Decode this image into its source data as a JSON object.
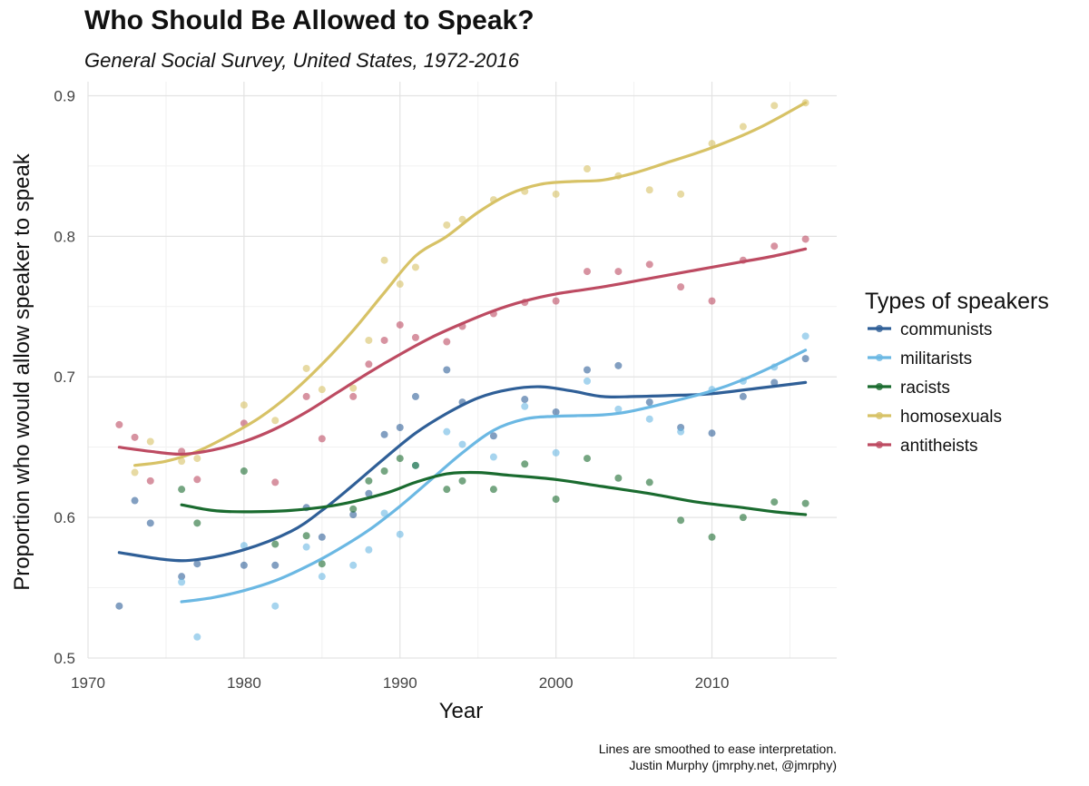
{
  "title": "Who Should Be Allowed to Speak?",
  "subtitle": "General Social Survey, United States, 1972-2016",
  "caption": [
    "Lines are smoothed to ease interpretation.",
    "Justin Murphy (jmrphy.net, @jmrphy)"
  ],
  "chart_data": {
    "type": "scatter",
    "title": "Who Should Be Allowed to Speak?",
    "subtitle": "General Social Survey, United States, 1972-2016",
    "xlabel": "Year",
    "ylabel": "Proportion who would allow speaker to speak",
    "xlim": [
      1970,
      2018
    ],
    "ylim": [
      0.5,
      0.91
    ],
    "x_ticks": [
      1970,
      1980,
      1990,
      2000,
      2010
    ],
    "y_ticks": [
      0.5,
      0.6,
      0.7,
      0.8,
      0.9
    ],
    "x_tick_labels": [
      "1970",
      "1980",
      "1990",
      "2000",
      "2010"
    ],
    "y_tick_labels": [
      "0.5",
      "0.6",
      "0.7",
      "0.8",
      "0.9"
    ],
    "grid": true,
    "legend": {
      "title": "Types of speakers",
      "position": "right"
    },
    "series": [
      {
        "name": "communists",
        "color": "#2f5f97",
        "points": [
          [
            1972,
            0.537
          ],
          [
            1973,
            0.612
          ],
          [
            1974,
            0.596
          ],
          [
            1976,
            0.558
          ],
          [
            1977,
            0.567
          ],
          [
            1980,
            0.566
          ],
          [
            1982,
            0.566
          ],
          [
            1984,
            0.607
          ],
          [
            1985,
            0.586
          ],
          [
            1987,
            0.602
          ],
          [
            1988,
            0.617
          ],
          [
            1989,
            0.659
          ],
          [
            1990,
            0.664
          ],
          [
            1991,
            0.686
          ],
          [
            1993,
            0.705
          ],
          [
            1994,
            0.682
          ],
          [
            1996,
            0.658
          ],
          [
            1998,
            0.684
          ],
          [
            2000,
            0.675
          ],
          [
            2002,
            0.705
          ],
          [
            2004,
            0.708
          ],
          [
            2006,
            0.682
          ],
          [
            2008,
            0.664
          ],
          [
            2010,
            0.66
          ],
          [
            2012,
            0.686
          ],
          [
            2014,
            0.696
          ],
          [
            2016,
            0.713
          ]
        ],
        "smooth": [
          [
            1972,
            0.575
          ],
          [
            1975,
            0.57
          ],
          [
            1977,
            0.57
          ],
          [
            1980,
            0.577
          ],
          [
            1983,
            0.59
          ],
          [
            1985,
            0.605
          ],
          [
            1987,
            0.623
          ],
          [
            1989,
            0.642
          ],
          [
            1991,
            0.66
          ],
          [
            1993,
            0.674
          ],
          [
            1995,
            0.685
          ],
          [
            1997,
            0.691
          ],
          [
            1999,
            0.693
          ],
          [
            2001,
            0.69
          ],
          [
            2003,
            0.686
          ],
          [
            2005,
            0.686
          ],
          [
            2008,
            0.687
          ],
          [
            2010,
            0.688
          ],
          [
            2013,
            0.692
          ],
          [
            2016,
            0.696
          ]
        ]
      },
      {
        "name": "militarists",
        "color": "#6bb8e3",
        "points": [
          [
            1976,
            0.554
          ],
          [
            1977,
            0.515
          ],
          [
            1980,
            0.58
          ],
          [
            1982,
            0.537
          ],
          [
            1984,
            0.579
          ],
          [
            1985,
            0.558
          ],
          [
            1987,
            0.566
          ],
          [
            1988,
            0.577
          ],
          [
            1989,
            0.603
          ],
          [
            1990,
            0.588
          ],
          [
            1991,
            0.637
          ],
          [
            1993,
            0.661
          ],
          [
            1994,
            0.652
          ],
          [
            1996,
            0.643
          ],
          [
            1998,
            0.679
          ],
          [
            2000,
            0.646
          ],
          [
            2002,
            0.697
          ],
          [
            2004,
            0.677
          ],
          [
            2006,
            0.67
          ],
          [
            2008,
            0.661
          ],
          [
            2010,
            0.691
          ],
          [
            2012,
            0.697
          ],
          [
            2014,
            0.707
          ],
          [
            2016,
            0.729
          ]
        ],
        "smooth": [
          [
            1976,
            0.54
          ],
          [
            1978,
            0.543
          ],
          [
            1980,
            0.548
          ],
          [
            1982,
            0.555
          ],
          [
            1984,
            0.565
          ],
          [
            1986,
            0.577
          ],
          [
            1988,
            0.591
          ],
          [
            1990,
            0.608
          ],
          [
            1992,
            0.627
          ],
          [
            1994,
            0.646
          ],
          [
            1996,
            0.662
          ],
          [
            1998,
            0.67
          ],
          [
            2000,
            0.672
          ],
          [
            2003,
            0.673
          ],
          [
            2005,
            0.676
          ],
          [
            2008,
            0.684
          ],
          [
            2010,
            0.69
          ],
          [
            2012,
            0.698
          ],
          [
            2014,
            0.708
          ],
          [
            2016,
            0.719
          ]
        ]
      },
      {
        "name": "racists",
        "color": "#1a6b2f",
        "points": [
          [
            1976,
            0.62
          ],
          [
            1977,
            0.596
          ],
          [
            1980,
            0.633
          ],
          [
            1982,
            0.581
          ],
          [
            1984,
            0.587
          ],
          [
            1985,
            0.567
          ],
          [
            1987,
            0.606
          ],
          [
            1988,
            0.626
          ],
          [
            1989,
            0.633
          ],
          [
            1990,
            0.642
          ],
          [
            1991,
            0.637
          ],
          [
            1993,
            0.62
          ],
          [
            1994,
            0.626
          ],
          [
            1996,
            0.62
          ],
          [
            1998,
            0.638
          ],
          [
            2000,
            0.613
          ],
          [
            2002,
            0.642
          ],
          [
            2004,
            0.628
          ],
          [
            2006,
            0.625
          ],
          [
            2008,
            0.598
          ],
          [
            2010,
            0.586
          ],
          [
            2012,
            0.6
          ],
          [
            2014,
            0.611
          ],
          [
            2016,
            0.61
          ]
        ],
        "smooth": [
          [
            1976,
            0.609
          ],
          [
            1978,
            0.605
          ],
          [
            1980,
            0.604
          ],
          [
            1983,
            0.605
          ],
          [
            1986,
            0.609
          ],
          [
            1989,
            0.617
          ],
          [
            1991,
            0.625
          ],
          [
            1993,
            0.631
          ],
          [
            1995,
            0.632
          ],
          [
            1997,
            0.63
          ],
          [
            2000,
            0.627
          ],
          [
            2003,
            0.622
          ],
          [
            2006,
            0.617
          ],
          [
            2009,
            0.611
          ],
          [
            2012,
            0.607
          ],
          [
            2014,
            0.604
          ],
          [
            2016,
            0.602
          ]
        ]
      },
      {
        "name": "homosexuals",
        "color": "#d7c266",
        "points": [
          [
            1973,
            0.632
          ],
          [
            1974,
            0.654
          ],
          [
            1976,
            0.64
          ],
          [
            1977,
            0.642
          ],
          [
            1980,
            0.68
          ],
          [
            1982,
            0.669
          ],
          [
            1984,
            0.706
          ],
          [
            1985,
            0.691
          ],
          [
            1987,
            0.692
          ],
          [
            1988,
            0.726
          ],
          [
            1989,
            0.783
          ],
          [
            1990,
            0.766
          ],
          [
            1991,
            0.778
          ],
          [
            1993,
            0.808
          ],
          [
            1994,
            0.812
          ],
          [
            1996,
            0.826
          ],
          [
            1998,
            0.832
          ],
          [
            2000,
            0.83
          ],
          [
            2002,
            0.848
          ],
          [
            2004,
            0.843
          ],
          [
            2006,
            0.833
          ],
          [
            2008,
            0.83
          ],
          [
            2010,
            0.866
          ],
          [
            2012,
            0.878
          ],
          [
            2014,
            0.893
          ],
          [
            2016,
            0.895
          ]
        ],
        "smooth": [
          [
            1973,
            0.637
          ],
          [
            1975,
            0.64
          ],
          [
            1977,
            0.647
          ],
          [
            1979,
            0.658
          ],
          [
            1981,
            0.671
          ],
          [
            1983,
            0.688
          ],
          [
            1985,
            0.709
          ],
          [
            1987,
            0.733
          ],
          [
            1989,
            0.76
          ],
          [
            1991,
            0.786
          ],
          [
            1993,
            0.8
          ],
          [
            1995,
            0.817
          ],
          [
            1997,
            0.83
          ],
          [
            1999,
            0.837
          ],
          [
            2001,
            0.839
          ],
          [
            2003,
            0.84
          ],
          [
            2005,
            0.845
          ],
          [
            2007,
            0.852
          ],
          [
            2010,
            0.863
          ],
          [
            2013,
            0.877
          ],
          [
            2016,
            0.895
          ]
        ]
      },
      {
        "name": "antitheists",
        "color": "#bd4b62",
        "points": [
          [
            1972,
            0.666
          ],
          [
            1973,
            0.657
          ],
          [
            1974,
            0.626
          ],
          [
            1976,
            0.647
          ],
          [
            1977,
            0.627
          ],
          [
            1980,
            0.667
          ],
          [
            1982,
            0.625
          ],
          [
            1984,
            0.686
          ],
          [
            1985,
            0.656
          ],
          [
            1987,
            0.686
          ],
          [
            1988,
            0.709
          ],
          [
            1989,
            0.726
          ],
          [
            1990,
            0.737
          ],
          [
            1991,
            0.728
          ],
          [
            1993,
            0.725
          ],
          [
            1994,
            0.736
          ],
          [
            1996,
            0.745
          ],
          [
            1998,
            0.753
          ],
          [
            2000,
            0.754
          ],
          [
            2002,
            0.775
          ],
          [
            2004,
            0.775
          ],
          [
            2006,
            0.78
          ],
          [
            2008,
            0.764
          ],
          [
            2010,
            0.754
          ],
          [
            2012,
            0.783
          ],
          [
            2014,
            0.793
          ],
          [
            2016,
            0.798
          ]
        ],
        "smooth": [
          [
            1972,
            0.65
          ],
          [
            1974,
            0.647
          ],
          [
            1976,
            0.645
          ],
          [
            1978,
            0.648
          ],
          [
            1980,
            0.654
          ],
          [
            1982,
            0.663
          ],
          [
            1984,
            0.675
          ],
          [
            1986,
            0.689
          ],
          [
            1988,
            0.703
          ],
          [
            1990,
            0.716
          ],
          [
            1992,
            0.728
          ],
          [
            1994,
            0.738
          ],
          [
            1996,
            0.747
          ],
          [
            1998,
            0.754
          ],
          [
            2000,
            0.759
          ],
          [
            2003,
            0.764
          ],
          [
            2006,
            0.77
          ],
          [
            2009,
            0.776
          ],
          [
            2012,
            0.782
          ],
          [
            2014,
            0.786
          ],
          [
            2016,
            0.791
          ]
        ]
      }
    ]
  }
}
